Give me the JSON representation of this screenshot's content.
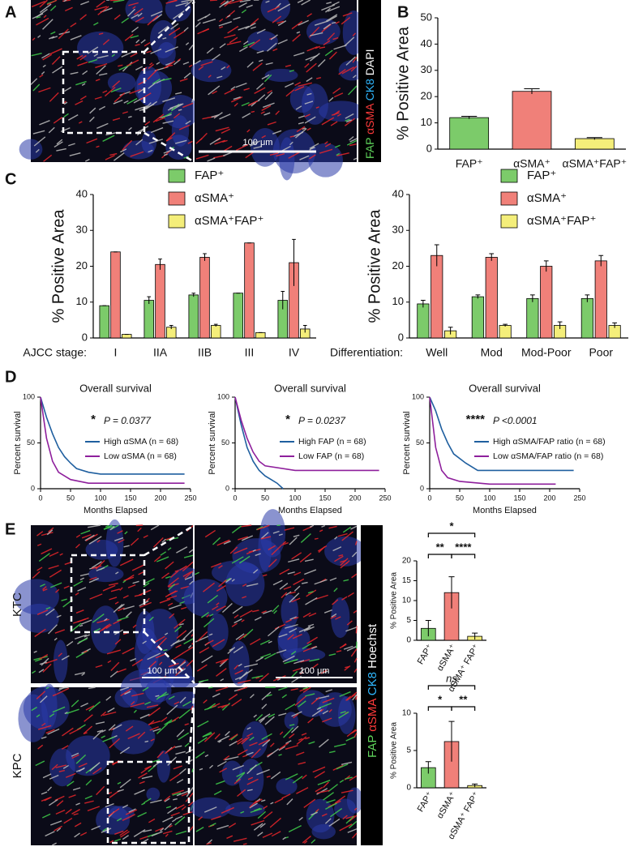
{
  "figure": {
    "panel_letters": [
      "A",
      "B",
      "C",
      "D",
      "E"
    ],
    "stain_A": [
      "FAP",
      "αSMA",
      "CK8",
      "DAPI"
    ],
    "scale_bar_A": "100 μm",
    "stain_E": [
      "FAP",
      "αSMA",
      "CK8",
      "Hoechst"
    ],
    "scale_bars_E": [
      "100 μm",
      "100 μm"
    ],
    "row_labels_E": [
      "KTC",
      "KPC"
    ]
  },
  "chart_data": [
    {
      "type": "bar",
      "ylabel": "% Positive Area",
      "categories": [
        "FAP⁺",
        "αSMA⁺",
        "αSMA⁺FAP⁺"
      ],
      "values": [
        12,
        22,
        4
      ],
      "errors": [
        0.5,
        1,
        0.4
      ],
      "colors": [
        "#7ccb6a",
        "#f08079",
        "#f4ee7a"
      ],
      "ylim": [
        0,
        50
      ],
      "yticks": [
        0,
        10,
        20,
        30,
        40,
        50
      ]
    },
    {
      "type": "bar",
      "ylabel": "% Positive Area",
      "xlabel": "AJCC stage:",
      "categories": [
        "I",
        "IIA",
        "IIB",
        "III",
        "IV"
      ],
      "series": [
        {
          "name": "FAP⁺",
          "color": "#7ccb6a",
          "values": [
            9,
            10.5,
            12,
            12.5,
            10.5
          ],
          "errors": [
            0,
            1,
            0.5,
            0,
            2.5
          ]
        },
        {
          "name": "αSMA⁺",
          "color": "#f08079",
          "values": [
            24,
            20.5,
            22.5,
            26.5,
            21
          ],
          "errors": [
            0,
            1.5,
            1,
            0,
            6.5
          ]
        },
        {
          "name": "αSMA⁺FAP⁺",
          "color": "#f4ee7a",
          "values": [
            1,
            3,
            3.5,
            1.5,
            2.5
          ],
          "errors": [
            0,
            0.5,
            0.3,
            0,
            1
          ]
        }
      ],
      "ylim": [
        0,
        40
      ],
      "yticks": [
        0,
        10,
        20,
        30,
        40
      ]
    },
    {
      "type": "bar",
      "ylabel": "% Positive Area",
      "xlabel": "Differentiation:",
      "categories": [
        "Well",
        "Mod",
        "Mod-Poor",
        "Poor"
      ],
      "series": [
        {
          "name": "FAP⁺",
          "color": "#7ccb6a",
          "values": [
            9.5,
            11.5,
            11,
            11
          ],
          "errors": [
            1,
            0.5,
            1,
            1
          ]
        },
        {
          "name": "αSMA⁺",
          "color": "#f08079",
          "values": [
            23,
            22.5,
            20,
            21.5
          ],
          "errors": [
            3,
            1,
            1.5,
            1.5
          ]
        },
        {
          "name": "αSMA⁺FAP⁺",
          "color": "#f4ee7a",
          "values": [
            2,
            3.5,
            3.5,
            3.5
          ],
          "errors": [
            1,
            0.3,
            1,
            0.7
          ]
        }
      ],
      "ylim": [
        0,
        40
      ],
      "yticks": [
        0,
        10,
        20,
        30,
        40
      ]
    },
    {
      "type": "line",
      "title": "Overall survival",
      "ylabel": "Percent survival",
      "xlabel": "Months Elapsed",
      "annotations": [
        "*",
        "P = 0.0377"
      ],
      "series": [
        {
          "name": "High αSMA (n = 68)",
          "color": "#1f5f9f",
          "x": [
            0,
            10,
            20,
            30,
            40,
            50,
            60,
            80,
            100,
            240
          ],
          "values": [
            100,
            78,
            60,
            45,
            35,
            28,
            22,
            18,
            16,
            16
          ]
        },
        {
          "name": "Low αSMA (n = 68)",
          "color": "#8e1f9c",
          "x": [
            0,
            10,
            20,
            30,
            40,
            50,
            80,
            240
          ],
          "values": [
            100,
            55,
            30,
            18,
            14,
            10,
            6,
            6
          ]
        }
      ],
      "xlim": [
        0,
        250
      ],
      "xticks": [
        0,
        50,
        100,
        150,
        200,
        250
      ],
      "ylim": [
        0,
        100
      ],
      "yticks": [
        0,
        50,
        100
      ]
    },
    {
      "type": "line",
      "title": "Overall survival",
      "ylabel": "Percent survival",
      "xlabel": "Months Elapsed",
      "annotations": [
        "*",
        "P = 0.0237"
      ],
      "series": [
        {
          "name": "High FAP (n = 68)",
          "color": "#1f5f9f",
          "x": [
            0,
            10,
            20,
            30,
            40,
            50,
            60,
            70,
            80
          ],
          "values": [
            100,
            70,
            45,
            30,
            20,
            14,
            10,
            6,
            0
          ]
        },
        {
          "name": "Low FAP (n = 68)",
          "color": "#8e1f9c",
          "x": [
            0,
            10,
            20,
            30,
            40,
            50,
            100,
            240
          ],
          "values": [
            100,
            75,
            55,
            40,
            30,
            25,
            20,
            20
          ]
        }
      ],
      "xlim": [
        0,
        250
      ],
      "xticks": [
        0,
        50,
        100,
        150,
        200,
        250
      ],
      "ylim": [
        0,
        100
      ],
      "yticks": [
        0,
        50,
        100
      ]
    },
    {
      "type": "line",
      "title": "Overall survival",
      "ylabel": "Percent survival",
      "xlabel": "Months Elapsed",
      "annotations": [
        "****",
        "P <0.0001"
      ],
      "series": [
        {
          "name": "High αSMA/FAP ratio (n = 68)",
          "color": "#1f5f9f",
          "x": [
            0,
            10,
            20,
            30,
            40,
            60,
            80,
            240
          ],
          "values": [
            100,
            85,
            65,
            50,
            38,
            28,
            20,
            20
          ]
        },
        {
          "name": "Low αSMA/FAP ratio (n = 68)",
          "color": "#8e1f9c",
          "x": [
            0,
            10,
            20,
            30,
            50,
            100,
            210
          ],
          "values": [
            100,
            45,
            20,
            12,
            8,
            5,
            5
          ]
        }
      ],
      "xlim": [
        0,
        250
      ],
      "xticks": [
        0,
        50,
        100,
        150,
        200,
        250
      ],
      "ylim": [
        0,
        100
      ],
      "yticks": [
        0,
        50,
        100
      ]
    },
    {
      "type": "bar",
      "ylabel": "% Positive Area",
      "categories": [
        "FAP⁺",
        "αSMA⁺",
        "αSMA⁺ FAP⁺"
      ],
      "rotated_labels": true,
      "values": [
        3,
        12,
        1
      ],
      "errors": [
        2,
        4,
        0.8
      ],
      "colors": [
        "#7ccb6a",
        "#f08079",
        "#f4ee7a"
      ],
      "significance": [
        {
          "pair": [
            0,
            2
          ],
          "label": "*"
        },
        {
          "pair": [
            0,
            1
          ],
          "label": "**"
        },
        {
          "pair": [
            1,
            2
          ],
          "label": "****"
        }
      ],
      "ylim": [
        0,
        20
      ],
      "yticks": [
        0,
        5,
        10,
        15,
        20
      ]
    },
    {
      "type": "bar",
      "ylabel": "% Positive Area",
      "categories": [
        "FAP⁺",
        "αSMA⁺",
        "αSMA⁺ FAP⁺"
      ],
      "rotated_labels": true,
      "values": [
        2.7,
        6.2,
        0.3
      ],
      "errors": [
        0.8,
        2.7,
        0.2
      ],
      "colors": [
        "#7ccb6a",
        "#f08079",
        "#f4ee7a"
      ],
      "significance": [
        {
          "pair": [
            0,
            2
          ],
          "label": "ns"
        },
        {
          "pair": [
            0,
            1
          ],
          "label": "*"
        },
        {
          "pair": [
            1,
            2
          ],
          "label": "**"
        }
      ],
      "ylim": [
        0,
        10
      ],
      "yticks": [
        0,
        5,
        10
      ]
    }
  ]
}
